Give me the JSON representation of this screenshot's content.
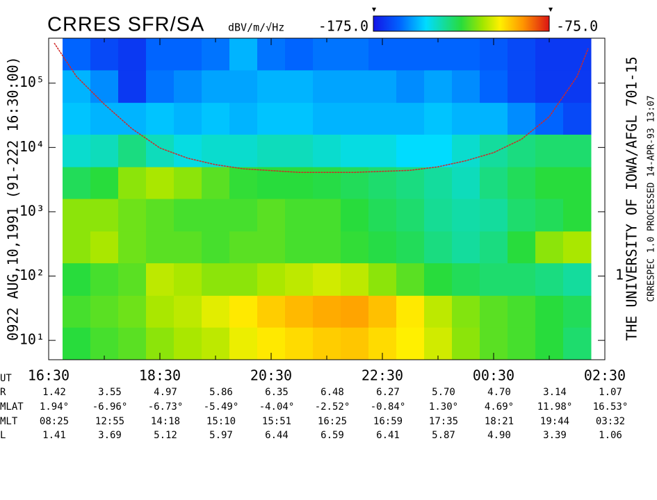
{
  "chart_data": {
    "type": "heatmap",
    "title": "CRRES SFR/SA",
    "ylabel": "0922 AUG,10,1991 (91-222 16:30:00)",
    "right_text_1": "THE UNIVERSITY OF IOWA/AFGL 701-15",
    "right_text_2": "CRRESPEC 1.0 PROCESSED 14-APR-93 13:07",
    "right_axis_label": "1",
    "xlabel": "UT",
    "log_y": true,
    "xlim": [
      16.5,
      26.5
    ],
    "ylim": [
      5,
      500000
    ],
    "xticks": [
      {
        "value": 16.5,
        "label": "16:30"
      },
      {
        "value": 18.5,
        "label": "18:30"
      },
      {
        "value": 20.5,
        "label": "20:30"
      },
      {
        "value": 22.5,
        "label": "22:30"
      },
      {
        "value": 24.5,
        "label": "00:30"
      },
      {
        "value": 26.5,
        "label": "02:30"
      }
    ],
    "xminor": [
      17.5,
      19.5,
      21.5,
      23.5,
      25.5
    ],
    "yticks": [
      {
        "value": 10,
        "label": "10¹"
      },
      {
        "value": 100,
        "label": "10²"
      },
      {
        "value": 1000,
        "label": "10³"
      },
      {
        "value": 10000,
        "label": "10⁴"
      },
      {
        "value": 100000,
        "label": "10⁵"
      }
    ],
    "colorbar": {
      "label": "dBV/m/√Hz",
      "ticks": [
        {
          "value": -175,
          "label": "-175.0"
        },
        {
          "value": -75,
          "label": "-75.0"
        }
      ]
    },
    "xbins": [
      16.75,
      17.25,
      17.75,
      18.25,
      18.75,
      19.25,
      19.75,
      20.25,
      20.75,
      21.25,
      21.75,
      22.25,
      22.75,
      23.25,
      23.75,
      24.25,
      24.75,
      25.25,
      25.75,
      26.25
    ],
    "ybins": [
      5,
      16,
      50,
      160,
      500,
      1600,
      5000,
      16000,
      50000,
      160000,
      500000
    ],
    "z": [
      [
        -125,
        -122,
        -120,
        -115,
        -112,
        -110,
        -105,
        -102,
        -100,
        -98,
        -97,
        -100,
        -103,
        -108,
        -115,
        -120,
        -122,
        -125,
        -130
      ],
      [
        -122,
        -120,
        -118,
        -112,
        -110,
        -106,
        -102,
        -98,
        -95,
        -93,
        -92,
        -96,
        -102,
        -110,
        -116,
        -120,
        -122,
        -125,
        -128
      ],
      [
        -125,
        -122,
        -120,
        -110,
        -112,
        -115,
        -115,
        -112,
        -110,
        -108,
        -110,
        -115,
        -120,
        -125,
        -128,
        -130,
        -130,
        -132,
        -135
      ],
      [
        -115,
        -112,
        -118,
        -120,
        -120,
        -122,
        -120,
        -120,
        -122,
        -122,
        -124,
        -126,
        -128,
        -132,
        -135,
        -132,
        -125,
        -115,
        -112
      ],
      [
        -115,
        -115,
        -118,
        -120,
        -122,
        -122,
        -122,
        -120,
        -122,
        -122,
        -125,
        -128,
        -130,
        -134,
        -136,
        -135,
        -130,
        -128,
        -125
      ],
      [
        -128,
        -125,
        -115,
        -112,
        -115,
        -120,
        -124,
        -125,
        -125,
        -126,
        -128,
        -130,
        -132,
        -135,
        -138,
        -132,
        -128,
        -125,
        -125
      ],
      [
        -140,
        -138,
        -132,
        -138,
        -142,
        -140,
        -140,
        -138,
        -138,
        -140,
        -142,
        -142,
        -145,
        -145,
        -140,
        -135,
        -132,
        -130,
        -130
      ],
      [
        -148,
        -150,
        -150,
        -148,
        -150,
        -148,
        -150,
        -148,
        -148,
        -150,
        -150,
        -150,
        -150,
        -148,
        -150,
        -150,
        -155,
        -160,
        -165
      ],
      [
        -150,
        -155,
        -168,
        -158,
        -155,
        -152,
        -152,
        -150,
        -150,
        -152,
        -152,
        -152,
        -155,
        -152,
        -155,
        -160,
        -165,
        -168,
        -168
      ],
      [
        -160,
        -165,
        -168,
        -160,
        -160,
        -158,
        -150,
        -158,
        -160,
        -158,
        -158,
        -160,
        -160,
        -160,
        -160,
        -162,
        -165,
        -168,
        -168
      ]
    ],
    "curve": {
      "color": "#d02828",
      "x": [
        16.6,
        17.0,
        17.5,
        18.0,
        18.5,
        19.0,
        19.5,
        20.0,
        21.0,
        22.0,
        23.0,
        23.5,
        24.0,
        24.5,
        25.0,
        25.5,
        26.0,
        26.2
      ],
      "y": [
        420000,
        127000,
        47000,
        19500,
        9800,
        6800,
        5400,
        4650,
        4100,
        4100,
        4400,
        5000,
        6200,
        8300,
        13400,
        30000,
        127000,
        345000
      ]
    },
    "ephemeris": [
      {
        "name": "R",
        "values": [
          "1.42",
          "3.55",
          "4.97",
          "5.86",
          "6.35",
          "6.48",
          "6.27",
          "5.70",
          "4.70",
          "3.14",
          "1.07"
        ]
      },
      {
        "name": "MLAT",
        "values": [
          "1.94°",
          "-6.96°",
          "-6.73°",
          "-5.49°",
          "-4.04°",
          "-2.52°",
          "-0.84°",
          "1.30°",
          "4.69°",
          "11.98°",
          "16.53°"
        ]
      },
      {
        "name": "MLT",
        "values": [
          "08:25",
          "12:55",
          "14:18",
          "15:10",
          "15:51",
          "16:25",
          "16:59",
          "17:35",
          "18:21",
          "19:44",
          "03:32"
        ]
      },
      {
        "name": "L",
        "values": [
          "1.41",
          "3.69",
          "5.12",
          "5.97",
          "6.44",
          "6.59",
          "6.41",
          "5.87",
          "4.90",
          "3.39",
          "1.06"
        ]
      }
    ]
  }
}
